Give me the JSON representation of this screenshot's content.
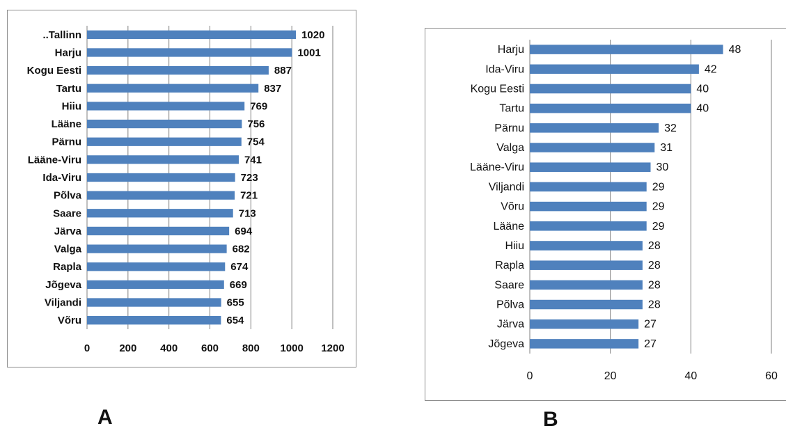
{
  "panels": [
    {
      "letter": "A"
    },
    {
      "letter": "B"
    }
  ],
  "chart_data": [
    {
      "type": "bar",
      "orientation": "horizontal",
      "categories": [
        "..Tallinn",
        "Harju",
        "Kogu Eesti",
        "Tartu",
        "Hiiu",
        "Lääne",
        "Pärnu",
        "Lääne-Viru",
        "Ida-Viru",
        "Põlva",
        "Saare",
        "Järva",
        "Valga",
        "Rapla",
        "Jõgeva",
        "Viljandi",
        "Võru"
      ],
      "values": [
        1020,
        1001,
        887,
        837,
        769,
        756,
        754,
        741,
        723,
        721,
        713,
        694,
        682,
        674,
        669,
        655,
        654
      ],
      "xlim": [
        0,
        1200
      ],
      "xticks": [
        0,
        200,
        400,
        600,
        800,
        1000,
        1200
      ],
      "grid": "vertical",
      "data_labels": true,
      "bar_color": "#4f81bd"
    },
    {
      "type": "bar",
      "orientation": "horizontal",
      "categories": [
        "Harju",
        "Ida-Viru",
        "Kogu Eesti",
        "Tartu",
        "Pärnu",
        "Valga",
        "Lääne-Viru",
        "Viljandi",
        "Võru",
        "Lääne",
        "Hiiu",
        "Rapla",
        "Saare",
        "Põlva",
        "Järva",
        "Jõgeva"
      ],
      "values": [
        48,
        42,
        40,
        40,
        32,
        31,
        30,
        29,
        29,
        29,
        28,
        28,
        28,
        28,
        27,
        27
      ],
      "xlim": [
        0,
        60
      ],
      "xticks": [
        0,
        20,
        40,
        60
      ],
      "grid": "vertical",
      "data_labels": true,
      "bar_color": "#4f81bd"
    }
  ]
}
